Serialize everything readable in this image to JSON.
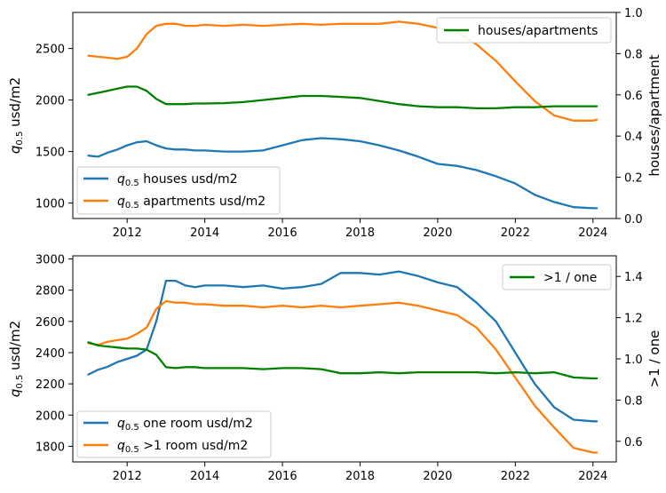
{
  "colors": {
    "houses": "#1f77b4",
    "apartments": "#ff7f0e",
    "ratio": "#008000",
    "one_room": "#1f77b4",
    "multi_room": "#ff7f0e"
  },
  "chart_data": [
    {
      "type": "line",
      "xlabel": "",
      "ylabel_left": "q0.5 usd/m2",
      "ylabel_right": "houses/apartment",
      "xlim": [
        2010.6,
        2024.6
      ],
      "ylim_left": [
        850,
        2850
      ],
      "ylim_right": [
        0.0,
        1.0
      ],
      "x_ticks": [
        2012,
        2014,
        2016,
        2018,
        2020,
        2022,
        2024
      ],
      "y_ticks_left": [
        1000,
        1500,
        2000,
        2500
      ],
      "y_ticks_right": [
        0.0,
        0.2,
        0.4,
        0.6,
        0.8,
        1.0
      ],
      "legend_left": {
        "placement": "lower-left",
        "entries": [
          "houses usd/m2",
          "apartments usd/m2"
        ]
      },
      "legend_right": {
        "placement": "upper-right",
        "entries": [
          "houses/apartments"
        ]
      },
      "x": [
        2011.0,
        2011.25,
        2011.5,
        2011.75,
        2012.0,
        2012.25,
        2012.5,
        2012.75,
        2013.0,
        2013.25,
        2013.5,
        2013.75,
        2014.0,
        2014.5,
        2015.0,
        2015.5,
        2016.0,
        2016.5,
        2017.0,
        2017.5,
        2018.0,
        2018.5,
        2019.0,
        2019.5,
        2020.0,
        2020.5,
        2021.0,
        2021.5,
        2022.0,
        2022.5,
        2023.0,
        2023.5,
        2024.0,
        2024.1
      ],
      "series": [
        {
          "name": "houses usd/m2",
          "axis": "left",
          "color_key": "houses",
          "values": [
            1460,
            1450,
            1490,
            1520,
            1560,
            1590,
            1600,
            1560,
            1530,
            1520,
            1520,
            1510,
            1510,
            1500,
            1500,
            1510,
            1560,
            1610,
            1630,
            1620,
            1600,
            1560,
            1510,
            1450,
            1380,
            1360,
            1320,
            1260,
            1190,
            1080,
            1010,
            960,
            950,
            950
          ]
        },
        {
          "name": "apartments usd/m2",
          "axis": "left",
          "color_key": "apartments",
          "values": [
            2430,
            2420,
            2410,
            2400,
            2420,
            2500,
            2640,
            2720,
            2740,
            2740,
            2720,
            2720,
            2730,
            2720,
            2730,
            2720,
            2730,
            2740,
            2730,
            2740,
            2740,
            2740,
            2760,
            2740,
            2700,
            2660,
            2540,
            2380,
            2180,
            1990,
            1850,
            1800,
            1800,
            1810
          ]
        },
        {
          "name": "houses/apartments",
          "axis": "right",
          "color_key": "ratio",
          "values": [
            0.6,
            0.61,
            0.62,
            0.63,
            0.64,
            0.64,
            0.62,
            0.58,
            0.555,
            0.555,
            0.555,
            0.558,
            0.558,
            0.56,
            0.565,
            0.575,
            0.585,
            0.595,
            0.595,
            0.59,
            0.585,
            0.57,
            0.555,
            0.545,
            0.54,
            0.54,
            0.535,
            0.535,
            0.54,
            0.54,
            0.545,
            0.545,
            0.545,
            0.545
          ]
        }
      ]
    },
    {
      "type": "line",
      "xlabel": "",
      "ylabel_left": "q0.5 usd/m2",
      "ylabel_right": ">1 / one",
      "xlim": [
        2010.6,
        2024.6
      ],
      "ylim_left": [
        1700,
        3020
      ],
      "ylim_right": [
        0.5,
        1.5
      ],
      "x_ticks": [
        2012,
        2014,
        2016,
        2018,
        2020,
        2022,
        2024
      ],
      "y_ticks_left": [
        1800,
        2000,
        2200,
        2400,
        2600,
        2800,
        3000
      ],
      "y_ticks_right": [
        0.6,
        0.8,
        1.0,
        1.2,
        1.4
      ],
      "legend_left": {
        "placement": "lower-left",
        "entries": [
          "one room usd/m2",
          ">1 room usd/m2"
        ]
      },
      "legend_right": {
        "placement": "upper-right",
        "entries": [
          ">1 / one"
        ]
      },
      "x": [
        2011.0,
        2011.25,
        2011.5,
        2011.75,
        2012.0,
        2012.25,
        2012.5,
        2012.75,
        2013.0,
        2013.25,
        2013.5,
        2013.75,
        2014.0,
        2014.5,
        2015.0,
        2015.5,
        2016.0,
        2016.5,
        2017.0,
        2017.5,
        2018.0,
        2018.5,
        2019.0,
        2019.5,
        2020.0,
        2020.5,
        2021.0,
        2021.5,
        2022.0,
        2022.5,
        2023.0,
        2023.5,
        2024.0,
        2024.1
      ],
      "series": [
        {
          "name": "one room usd/m2",
          "axis": "left",
          "color_key": "one_room",
          "values": [
            2260,
            2290,
            2310,
            2340,
            2360,
            2380,
            2420,
            2600,
            2860,
            2860,
            2830,
            2820,
            2830,
            2830,
            2820,
            2830,
            2810,
            2820,
            2840,
            2910,
            2910,
            2900,
            2920,
            2890,
            2850,
            2820,
            2720,
            2600,
            2400,
            2200,
            2050,
            1970,
            1960,
            1960
          ]
        },
        {
          "name": ">1 room usd/m2",
          "axis": "left",
          "color_key": "multi_room",
          "values": [
            2460,
            2450,
            2470,
            2480,
            2490,
            2520,
            2560,
            2680,
            2730,
            2720,
            2720,
            2710,
            2710,
            2700,
            2700,
            2690,
            2700,
            2690,
            2700,
            2690,
            2700,
            2710,
            2720,
            2700,
            2670,
            2640,
            2560,
            2420,
            2240,
            2060,
            1920,
            1790,
            1760,
            1760
          ]
        },
        {
          "name": ">1 / one",
          "axis": "right",
          "color_key": "ratio",
          "values": [
            1.08,
            1.065,
            1.06,
            1.055,
            1.05,
            1.05,
            1.045,
            1.02,
            0.96,
            0.955,
            0.96,
            0.96,
            0.955,
            0.955,
            0.955,
            0.95,
            0.955,
            0.955,
            0.95,
            0.93,
            0.93,
            0.935,
            0.93,
            0.935,
            0.935,
            0.935,
            0.935,
            0.93,
            0.935,
            0.93,
            0.935,
            0.91,
            0.905,
            0.905
          ]
        }
      ]
    }
  ]
}
